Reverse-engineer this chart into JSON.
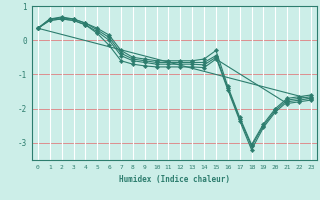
{
  "xlabel": "Humidex (Indice chaleur)",
  "bg_color": "#cceee8",
  "line_color": "#2d7d6e",
  "xlim": [
    -0.5,
    23.5
  ],
  "ylim": [
    -3.5,
    1.0
  ],
  "yticks": [
    1,
    0,
    -1,
    -2,
    -3
  ],
  "xticks": [
    0,
    1,
    2,
    3,
    4,
    5,
    6,
    7,
    8,
    9,
    10,
    11,
    12,
    13,
    14,
    15,
    16,
    17,
    18,
    19,
    20,
    21,
    22,
    23
  ],
  "red_hlines": [
    0,
    -1,
    -2,
    -3
  ],
  "white_vlines": [
    0,
    1,
    2,
    3,
    4,
    5,
    6,
    7,
    8,
    9,
    10,
    11,
    12,
    13,
    14,
    15,
    16,
    17,
    18,
    19,
    20,
    21,
    22,
    23
  ],
  "series": [
    [
      [
        0,
        0.35
      ],
      [
        1,
        0.62
      ],
      [
        2,
        0.68
      ],
      [
        3,
        0.62
      ],
      [
        4,
        0.5
      ],
      [
        5,
        0.35
      ],
      [
        6,
        0.15
      ],
      [
        7,
        -0.3
      ],
      [
        8,
        -0.5
      ],
      [
        9,
        -0.55
      ],
      [
        10,
        -0.6
      ],
      [
        11,
        -0.6
      ],
      [
        12,
        -0.6
      ],
      [
        13,
        -0.6
      ],
      [
        14,
        -0.55
      ],
      [
        15,
        -0.3
      ],
      [
        16,
        -1.35
      ],
      [
        17,
        -2.25
      ],
      [
        18,
        -3.05
      ],
      [
        19,
        -2.45
      ],
      [
        20,
        -2.0
      ],
      [
        21,
        -1.7
      ],
      [
        22,
        -1.65
      ],
      [
        23,
        -1.6
      ]
    ],
    [
      [
        0,
        0.35
      ],
      [
        1,
        0.62
      ],
      [
        2,
        0.65
      ],
      [
        3,
        0.62
      ],
      [
        4,
        0.5
      ],
      [
        5,
        0.3
      ],
      [
        6,
        0.08
      ],
      [
        7,
        -0.38
      ],
      [
        8,
        -0.55
      ],
      [
        9,
        -0.6
      ],
      [
        10,
        -0.65
      ],
      [
        11,
        -0.65
      ],
      [
        12,
        -0.65
      ],
      [
        13,
        -0.65
      ],
      [
        14,
        -0.65
      ],
      [
        15,
        -0.45
      ],
      [
        16,
        -1.4
      ],
      [
        17,
        -2.3
      ],
      [
        18,
        -3.1
      ],
      [
        19,
        -2.5
      ],
      [
        20,
        -2.05
      ],
      [
        21,
        -1.75
      ],
      [
        22,
        -1.7
      ],
      [
        23,
        -1.65
      ]
    ],
    [
      [
        0,
        0.35
      ],
      [
        1,
        0.58
      ],
      [
        2,
        0.62
      ],
      [
        3,
        0.58
      ],
      [
        4,
        0.45
      ],
      [
        5,
        0.25
      ],
      [
        6,
        0.0
      ],
      [
        7,
        -0.45
      ],
      [
        8,
        -0.6
      ],
      [
        9,
        -0.65
      ],
      [
        10,
        -0.7
      ],
      [
        11,
        -0.7
      ],
      [
        12,
        -0.7
      ],
      [
        13,
        -0.7
      ],
      [
        14,
        -0.72
      ],
      [
        15,
        -0.5
      ],
      [
        16,
        -1.45
      ],
      [
        17,
        -2.35
      ],
      [
        18,
        -3.2
      ],
      [
        19,
        -2.55
      ],
      [
        20,
        -2.1
      ],
      [
        21,
        -1.8
      ],
      [
        22,
        -1.75
      ],
      [
        23,
        -1.7
      ]
    ],
    [
      [
        0,
        0.35
      ],
      [
        1,
        0.58
      ],
      [
        2,
        0.62
      ],
      [
        3,
        0.58
      ],
      [
        4,
        0.45
      ],
      [
        5,
        0.2
      ],
      [
        6,
        -0.15
      ],
      [
        7,
        -0.6
      ],
      [
        8,
        -0.7
      ],
      [
        9,
        -0.75
      ],
      [
        10,
        -0.78
      ],
      [
        11,
        -0.78
      ],
      [
        12,
        -0.78
      ],
      [
        13,
        -0.78
      ],
      [
        14,
        -0.8
      ],
      [
        15,
        -0.55
      ],
      [
        21,
        -1.85
      ],
      [
        22,
        -1.8
      ],
      [
        23,
        -1.75
      ]
    ],
    [
      [
        0,
        0.35
      ],
      [
        23,
        -1.72
      ]
    ]
  ]
}
